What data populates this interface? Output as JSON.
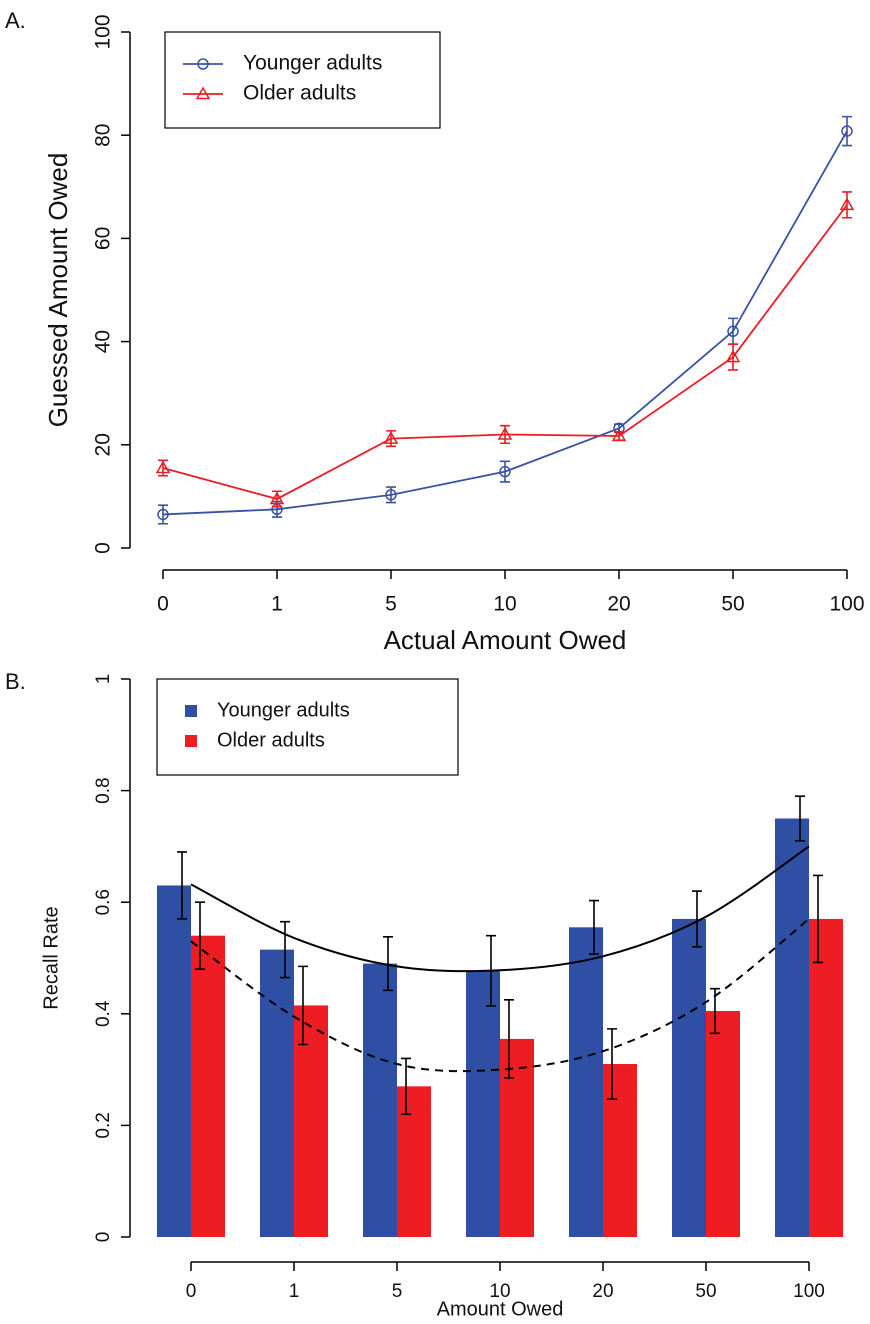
{
  "chart_data": [
    {
      "type": "line",
      "panel_label": "A.",
      "xlabel": "Actual Amount Owed",
      "ylabel": "Guessed Amount Owed",
      "categories": [
        "0",
        "1",
        "5",
        "10",
        "20",
        "50",
        "100"
      ],
      "ylim": [
        0,
        100
      ],
      "yticks": [
        0,
        20,
        40,
        60,
        80,
        100
      ],
      "grid": false,
      "legend": "top-left",
      "series": [
        {
          "name": "Younger adults",
          "color": "#3953a4",
          "marker": "circle",
          "values": [
            6.5,
            7.5,
            10.3,
            14.8,
            23.2,
            42,
            80.8
          ],
          "errors": [
            1.8,
            1.5,
            1.5,
            2,
            0.8,
            2.5,
            2.8
          ]
        },
        {
          "name": "Older adults",
          "color": "#ed1c24",
          "marker": "triangle",
          "values": [
            15.5,
            9.5,
            21.2,
            22,
            21.7,
            37,
            66.5
          ],
          "errors": [
            1.5,
            1.5,
            1.5,
            1.7,
            0.8,
            2.5,
            2.5
          ]
        }
      ]
    },
    {
      "type": "bar",
      "panel_label": "B.",
      "xlabel": "Amount Owed",
      "ylabel": "Recall Rate",
      "categories": [
        "0",
        "1",
        "5",
        "10",
        "20",
        "50",
        "100"
      ],
      "ylim": [
        0,
        1
      ],
      "yticks": [
        0,
        0.2,
        0.4,
        0.6,
        0.8,
        1
      ],
      "grid": false,
      "legend": "top-left",
      "series": [
        {
          "name": "Younger adults",
          "color": "#2e4fa3",
          "values": [
            0.63,
            0.515,
            0.49,
            0.477,
            0.555,
            0.57,
            0.75
          ],
          "errors": [
            0.06,
            0.05,
            0.048,
            0.063,
            0.048,
            0.05,
            0.04
          ]
        },
        {
          "name": "Older adults",
          "color": "#ee1d23",
          "values": [
            0.54,
            0.415,
            0.27,
            0.355,
            0.31,
            0.405,
            0.57
          ],
          "errors": [
            0.06,
            0.07,
            0.05,
            0.07,
            0.063,
            0.04,
            0.078
          ]
        }
      ],
      "fits": [
        {
          "color": "#000000",
          "dash": false,
          "values": [
            0.632,
            0.536,
            0.485,
            0.478,
            0.503,
            0.574,
            0.7
          ]
        },
        {
          "color": "#000000",
          "dash": true,
          "values": [
            0.53,
            0.395,
            0.31,
            0.3,
            0.333,
            0.421,
            0.57
          ]
        }
      ]
    }
  ]
}
